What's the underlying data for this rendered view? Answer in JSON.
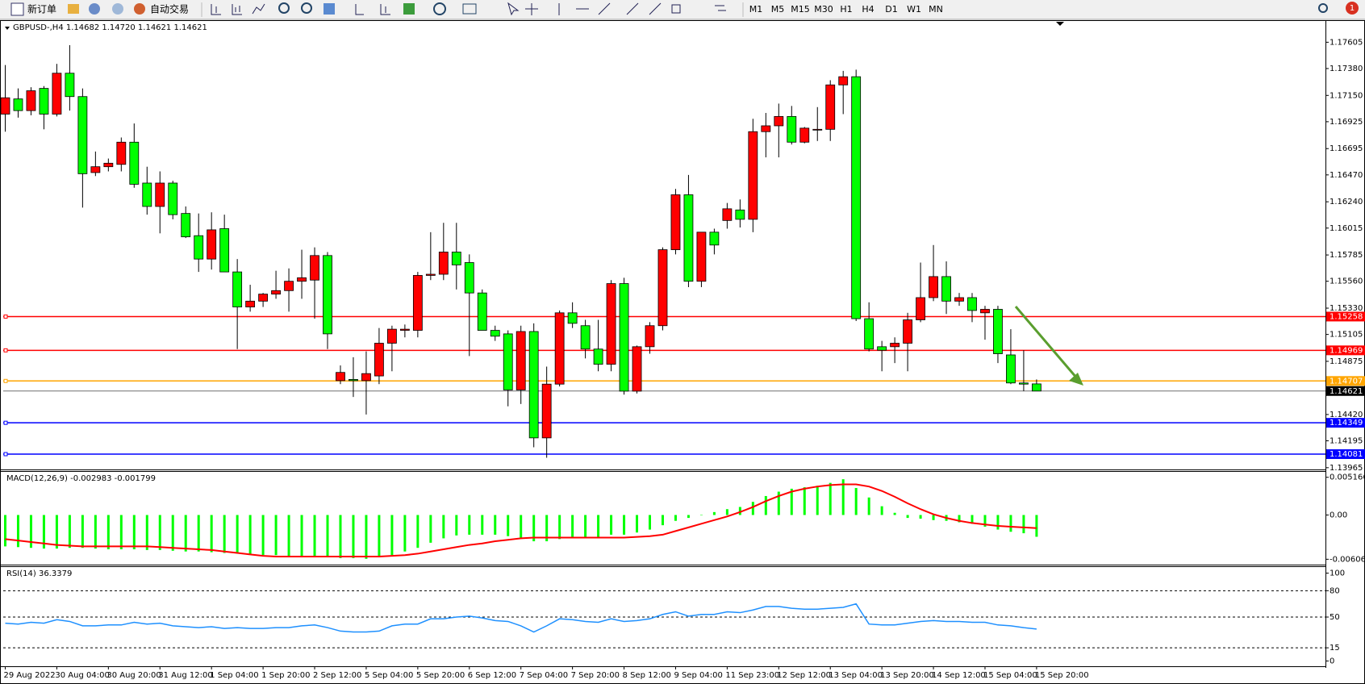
{
  "toolbar": {
    "buttons": [
      "新订单",
      "自动交易"
    ],
    "timeframes": [
      "M1",
      "M5",
      "M15",
      "M30",
      "H1",
      "H4",
      "D1",
      "W1",
      "MN"
    ],
    "notifications": 1
  },
  "chart_data": [
    {
      "type": "candlestick",
      "title": "GBPUSD-,H4  1.14682 1.14720 1.14621 1.14621",
      "categories": [
        "29 Aug 2022",
        null,
        null,
        null,
        "30 Aug 04:00",
        null,
        null,
        null,
        "30 Aug 20:00",
        null,
        null,
        null,
        "31 Aug 12:00",
        null,
        null,
        null,
        "1 Sep 04:00",
        null,
        null,
        null,
        "1 Sep 20:00",
        null,
        null,
        null,
        "2 Sep 12:00",
        null,
        null,
        null,
        "5 Sep 04:00",
        null,
        null,
        null,
        "5 Sep 20:00",
        null,
        null,
        null,
        "6 Sep 12:00",
        null,
        null,
        null,
        "7 Sep 04:00",
        null,
        null,
        null,
        "7 Sep 20:00",
        null,
        null,
        null,
        "8 Sep 12:00",
        null,
        null,
        null,
        "9 Sep 04:00",
        null,
        null,
        null,
        "11 Sep 23:00",
        null,
        null,
        null,
        "12 Sep 12:00",
        null,
        null,
        null,
        "13 Sep 04:00",
        null,
        null,
        null,
        "13 Sep 20:00",
        null,
        null,
        null,
        "14 Sep 12:00",
        null,
        null,
        null,
        "15 Sep 04:00",
        null,
        null,
        null,
        "15 Sep 20:00"
      ],
      "open": [
        1.1699,
        1.1712,
        1.1702,
        1.1721,
        1.1699,
        1.1734,
        1.1714,
        1.1649,
        1.1654,
        1.1656,
        1.1675,
        1.164,
        1.162,
        1.164,
        1.1614,
        1.1595,
        1.1575,
        1.1601,
        1.1564,
        1.1534,
        1.1539,
        1.1545,
        1.1548,
        1.1556,
        1.1557,
        1.1578,
        1.1471,
        1.1472,
        1.1471,
        1.1475,
        1.1503,
        1.1514,
        1.1514,
        1.1561,
        1.1562,
        1.1581,
        1.1572,
        1.1546,
        1.1514,
        1.1511,
        1.1463,
        1.1513,
        1.1422,
        1.1468,
        1.1529,
        1.1518,
        1.1498,
        1.1485,
        1.1554,
        1.1462,
        1.15,
        1.1518,
        1.1583,
        1.163,
        1.1556,
        1.1598,
        1.1608,
        1.1617,
        1.1609,
        1.1684,
        1.1689,
        1.1697,
        1.1675,
        1.1686,
        1.1686,
        1.1724,
        1.1731,
        1.1524,
        1.15,
        1.15,
        1.1503,
        1.1523,
        1.1542,
        1.156,
        1.1539,
        1.1542,
        1.1529,
        1.1532,
        1.1493,
        1.1469,
        1.14682
      ],
      "high": [
        1.1741,
        1.1721,
        1.1722,
        1.1723,
        1.1742,
        1.1758,
        1.1721,
        1.1667,
        1.1661,
        1.1679,
        1.1691,
        1.1654,
        1.165,
        1.1642,
        1.162,
        1.1614,
        1.1615,
        1.1613,
        1.1575,
        1.1553,
        1.1546,
        1.1565,
        1.1567,
        1.1583,
        1.1585,
        1.1581,
        1.1484,
        1.1491,
        1.1496,
        1.1516,
        1.1518,
        1.1519,
        1.1564,
        1.1598,
        1.1606,
        1.1606,
        1.1579,
        1.1549,
        1.1518,
        1.1514,
        1.1518,
        1.152,
        1.1483,
        1.1531,
        1.1538,
        1.1523,
        1.1523,
        1.1557,
        1.1559,
        1.1501,
        1.1521,
        1.1585,
        1.1635,
        1.1647,
        1.1598,
        1.1601,
        1.1623,
        1.1626,
        1.1695,
        1.17,
        1.1708,
        1.1706,
        1.1688,
        1.1705,
        1.1728,
        1.1736,
        1.1737,
        1.1538,
        1.1505,
        1.1508,
        1.1529,
        1.1572,
        1.1587,
        1.1573,
        1.1546,
        1.1546,
        1.1535,
        1.1535,
        1.1515,
        1.1497,
        1.1472
      ],
      "low": [
        1.1684,
        1.1696,
        1.1698,
        1.1686,
        1.1697,
        1.1702,
        1.1619,
        1.1646,
        1.165,
        1.165,
        1.1636,
        1.1613,
        1.1597,
        1.1609,
        1.1593,
        1.1564,
        1.1566,
        1.1564,
        1.1498,
        1.153,
        1.1534,
        1.1541,
        1.153,
        1.1541,
        1.1524,
        1.1498,
        1.1468,
        1.1457,
        1.1442,
        1.1468,
        1.1479,
        1.1508,
        1.1508,
        1.1557,
        1.1557,
        1.1549,
        1.1492,
        1.1514,
        1.1505,
        1.1449,
        1.1451,
        1.1414,
        1.1405,
        1.1466,
        1.1516,
        1.149,
        1.1479,
        1.1479,
        1.1459,
        1.146,
        1.1494,
        1.1514,
        1.1579,
        1.1551,
        1.1551,
        1.1579,
        1.1601,
        1.1602,
        1.1598,
        1.1662,
        1.1662,
        1.1673,
        1.1674,
        1.1676,
        1.1676,
        1.1699,
        1.1522,
        1.1496,
        1.1479,
        1.1486,
        1.1479,
        1.1521,
        1.1539,
        1.1528,
        1.1535,
        1.1521,
        1.1506,
        1.1486,
        1.1468,
        1.1462,
        1.14621
      ],
      "close": [
        1.1713,
        1.1702,
        1.1719,
        1.1699,
        1.1734,
        1.1714,
        1.1648,
        1.1654,
        1.1657,
        1.1675,
        1.1639,
        1.162,
        1.164,
        1.1613,
        1.1594,
        1.1575,
        1.16,
        1.1564,
        1.1534,
        1.1539,
        1.1545,
        1.1548,
        1.1556,
        1.1559,
        1.1578,
        1.1511,
        1.1478,
        1.1471,
        1.1477,
        1.1503,
        1.1515,
        1.1515,
        1.1561,
        1.1562,
        1.1581,
        1.157,
        1.1546,
        1.1514,
        1.1509,
        1.1463,
        1.1513,
        1.1422,
        1.1468,
        1.1529,
        1.152,
        1.1498,
        1.1485,
        1.1554,
        1.1462,
        1.15,
        1.1518,
        1.1583,
        1.163,
        1.1556,
        1.1598,
        1.1587,
        1.1618,
        1.1609,
        1.1684,
        1.1689,
        1.1697,
        1.1675,
        1.1687,
        1.1686,
        1.1724,
        1.1731,
        1.1524,
        1.1498,
        1.1497,
        1.1503,
        1.1523,
        1.1542,
        1.156,
        1.1539,
        1.1542,
        1.1531,
        1.1532,
        1.1494,
        1.1469,
        1.1468,
        1.14621
      ],
      "up_color": "#ff0000",
      "down_color": "#00ff00",
      "ylim": [
        1.1395,
        1.1778
      ],
      "yticks": [
        1.17605,
        {
          "value": 1.1738,
          "label": "1.17380"
        },
        {
          "value": 1.1715,
          "label": "1.17150"
        },
        1.16925,
        1.16695,
        {
          "value": 1.1647,
          "label": "1.16470"
        },
        {
          "value": 1.1624,
          "label": "1.16240"
        },
        1.16015,
        1.15785,
        {
          "value": 1.1556,
          "label": "1.15560"
        },
        {
          "value": 1.1533,
          "label": "1.15330"
        },
        1.15105,
        1.14875,
        {
          "value": 1.1442,
          "label": "1.14420"
        },
        1.14195,
        1.13965
      ],
      "levels": [
        {
          "value": 1.15258,
          "color": "#ff0000"
        },
        {
          "value": 1.14969,
          "color": "#ff0000"
        },
        {
          "value": 1.14707,
          "color": "#ffa500"
        },
        {
          "value": 1.14349,
          "color": "#0000ff"
        },
        {
          "value": 1.14081,
          "color": "#0000ff"
        }
      ],
      "current_price": 1.14621
    },
    {
      "type": "macd",
      "title": "MACD(12,26,9) -0.002983 -0.001799",
      "values": [
        -0.0043,
        -0.0044,
        -0.0045,
        -0.0046,
        -0.0046,
        -0.0045,
        -0.0045,
        -0.0046,
        -0.0047,
        -0.0047,
        -0.0047,
        -0.0048,
        -0.0048,
        -0.0049,
        -0.005,
        -0.005,
        -0.0051,
        -0.0052,
        -0.0053,
        -0.0054,
        -0.0055,
        -0.0055,
        -0.0056,
        -0.0056,
        -0.0057,
        -0.0058,
        -0.0059,
        -0.0059,
        -0.006,
        -0.0058,
        -0.0055,
        -0.005,
        -0.0045,
        -0.0038,
        -0.0032,
        -0.0028,
        -0.0027,
        -0.0027,
        -0.0027,
        -0.0029,
        -0.0032,
        -0.0036,
        -0.0036,
        -0.0033,
        -0.0031,
        -0.0031,
        -0.003,
        -0.0027,
        -0.0027,
        -0.0024,
        -0.002,
        -0.0014,
        -0.0008,
        -0.0004,
        0,
        0.0004,
        0.0008,
        0.0011,
        0.0018,
        0.0026,
        0.0032,
        0.0036,
        0.0038,
        0.004,
        0.0044,
        0.0049,
        0.0037,
        0.0024,
        0.0012,
        0.0003,
        -0.0004,
        -0.0005,
        -0.0007,
        -0.0008,
        -0.001,
        -0.0012,
        -0.0016,
        -0.002,
        -0.0023,
        -0.0025,
        -0.002983
      ],
      "signal": [
        -0.0033,
        -0.0035,
        -0.0037,
        -0.0039,
        -0.0041,
        -0.0042,
        -0.0043,
        -0.0043,
        -0.0043,
        -0.0043,
        -0.0043,
        -0.0043,
        -0.0044,
        -0.0045,
        -0.0046,
        -0.0047,
        -0.0048,
        -0.005,
        -0.0052,
        -0.0054,
        -0.0056,
        -0.0057,
        -0.0057,
        -0.0057,
        -0.0057,
        -0.0057,
        -0.0057,
        -0.0057,
        -0.0057,
        -0.0057,
        -0.0056,
        -0.0055,
        -0.0053,
        -0.005,
        -0.0047,
        -0.0044,
        -0.0041,
        -0.0039,
        -0.0036,
        -0.0034,
        -0.0032,
        -0.0031,
        -0.0031,
        -0.0031,
        -0.0031,
        -0.0031,
        -0.0031,
        -0.0031,
        -0.0031,
        -0.003,
        -0.0029,
        -0.0027,
        -0.0022,
        -0.0017,
        -0.0012,
        -0.0007,
        -0.0002,
        0.0004,
        0.0011,
        0.0019,
        0.0026,
        0.0032,
        0.0036,
        0.0039,
        0.0041,
        0.0042,
        0.0042,
        0.0039,
        0.0033,
        0.0025,
        0.0016,
        0.0008,
        0.0001,
        -0.0004,
        -0.0008,
        -0.0011,
        -0.0013,
        -0.0015,
        -0.0016,
        -0.0017,
        -0.001799
      ],
      "color": "#00ff00",
      "signal_color": "#ff0000",
      "ylim": [
        -0.0068,
        0.0058
      ],
      "yticks": [
        0.005166,
        {
          "value": 0,
          "label": "0.00"
        },
        -0.006064
      ]
    },
    {
      "type": "line",
      "title": "RSI(14) 36.3379",
      "values": [
        43,
        42,
        44,
        43,
        47,
        45,
        40,
        40,
        41,
        41,
        44,
        42,
        43,
        40,
        39,
        38,
        39,
        37,
        38,
        37,
        37,
        38,
        38,
        40,
        41,
        38,
        34,
        33,
        33,
        34,
        40,
        42,
        42,
        48,
        48,
        50,
        51,
        49,
        46,
        45,
        40,
        33,
        40,
        48,
        47,
        45,
        44,
        48,
        45,
        46,
        48,
        53,
        56,
        51,
        53,
        53,
        56,
        55,
        58,
        62,
        62,
        60,
        59,
        59,
        60,
        61,
        65,
        42,
        41,
        41,
        43,
        45,
        46,
        45,
        45,
        44,
        44,
        41,
        40,
        38,
        36.3379
      ],
      "color": "#1e90ff",
      "ylim": [
        -6,
        106
      ],
      "yticks": [
        0,
        15,
        50,
        80,
        100
      ],
      "levels": [
        80,
        50,
        15
      ]
    }
  ]
}
